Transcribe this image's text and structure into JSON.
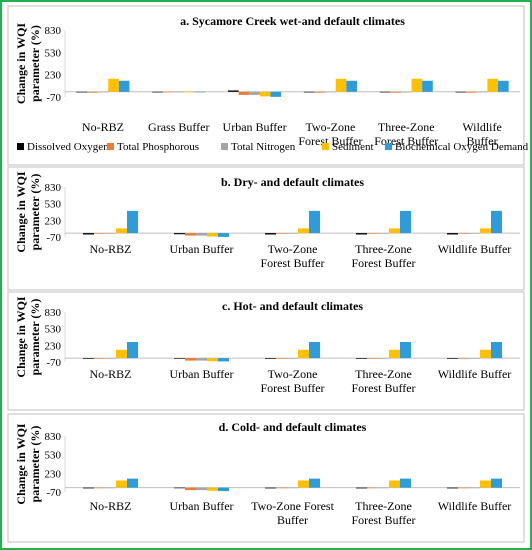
{
  "colors": {
    "border": "#22b14c",
    "panel_border": "#bfbfbf",
    "Dissolved Oxygen": "#000000",
    "Total Phosphorous": "#ed7d31",
    "Total Nitrogen": "#a5a5a5",
    "Sediment": "#ffc000",
    "Biochemical Oxygen Demand": "#2e9bdb"
  },
  "legend": {
    "placement": "between panel a and panel b",
    "items": [
      "Dissolved Oxygen",
      "Total Phosphorous",
      "Total Nitrogen",
      "Sediment",
      "Biochemical Oxygen Demand"
    ]
  },
  "chart_data": [
    {
      "type": "bar",
      "title": "a. Sycamore Creek wet-and default climates",
      "ylabel": "Change in WQI parameter (%)",
      "ylim": [
        -70,
        830
      ],
      "yticks": [
        "830",
        "530",
        "230",
        "-70"
      ],
      "grid": false,
      "categories": [
        [
          "No-RBZ"
        ],
        [
          "Grass Buffer"
        ],
        [
          "Urban Buffer"
        ],
        [
          "Two-Zone",
          "Forest Buffer"
        ],
        [
          "Three-Zone",
          "Forest Buffer"
        ],
        [
          "Wildlife",
          "Buffer"
        ]
      ],
      "series": [
        {
          "name": "Dissolved Oxygen",
          "values": [
            -5,
            0,
            18,
            -5,
            -5,
            -5
          ]
        },
        {
          "name": "Total Phosphorous",
          "values": [
            -12,
            0,
            -42,
            -12,
            -12,
            -12
          ]
        },
        {
          "name": "Total Nitrogen",
          "values": [
            -5,
            0,
            -42,
            -5,
            -5,
            -5
          ]
        },
        {
          "name": "Sediment",
          "values": [
            175,
            0,
            -62,
            175,
            175,
            175
          ]
        },
        {
          "name": "Biochemical Oxygen Demand",
          "values": [
            148,
            0,
            -68,
            148,
            148,
            148
          ]
        }
      ]
    },
    {
      "type": "bar",
      "title": "b. Dry- and default climates",
      "ylabel": "Change in WQI parameter (%)",
      "ylim": [
        -70,
        830
      ],
      "yticks": [
        "830",
        "530",
        "230",
        "-70"
      ],
      "grid": false,
      "categories": [
        [
          "No-RBZ"
        ],
        [
          "Urban Buffer"
        ],
        [
          "Two-Zone",
          "Forest Buffer"
        ],
        [
          "Three-Zone",
          "Forest Buffer"
        ],
        [
          "Wildlife Buffer"
        ]
      ],
      "series": [
        {
          "name": "Dissolved Oxygen",
          "values": [
            -25,
            -20,
            -25,
            -25,
            -25
          ]
        },
        {
          "name": "Total Phosphorous",
          "values": [
            -10,
            -45,
            -10,
            -10,
            -10
          ]
        },
        {
          "name": "Total Nitrogen",
          "values": [
            -5,
            -45,
            -5,
            -5,
            -5
          ]
        },
        {
          "name": "Sediment",
          "values": [
            85,
            -60,
            85,
            85,
            85
          ]
        },
        {
          "name": "Biochemical Oxygen Demand",
          "values": [
            400,
            -68,
            400,
            400,
            400
          ]
        }
      ]
    },
    {
      "type": "bar",
      "title": "c. Hot- and default climates",
      "ylabel": "Change in WQI parameter (%)",
      "ylim": [
        -70,
        830
      ],
      "yticks": [
        "830",
        "530",
        "230",
        "-70"
      ],
      "grid": false,
      "categories": [
        [
          "No-RBZ"
        ],
        [
          "Urban Buffer"
        ],
        [
          "Two-Zone",
          "Forest Buffer"
        ],
        [
          "Three-Zone",
          "Forest Buffer"
        ],
        [
          "Wildlife Buffer"
        ]
      ],
      "series": [
        {
          "name": "Dissolved Oxygen",
          "values": [
            -12,
            -10,
            -12,
            -12,
            -12
          ]
        },
        {
          "name": "Total Phosphorous",
          "values": [
            -8,
            -45,
            -8,
            -8,
            -8
          ]
        },
        {
          "name": "Total Nitrogen",
          "values": [
            -5,
            -45,
            -5,
            -5,
            -5
          ]
        },
        {
          "name": "Sediment",
          "values": [
            150,
            -55,
            150,
            150,
            150
          ]
        },
        {
          "name": "Biochemical Oxygen Demand",
          "values": [
            290,
            -60,
            290,
            290,
            290
          ]
        }
      ]
    },
    {
      "type": "bar",
      "title": "d. Cold- and default climates",
      "ylabel": "Change in WQI parameter (%)",
      "ylim": [
        -70,
        830
      ],
      "yticks": [
        "830",
        "530",
        "230",
        "-70"
      ],
      "grid": false,
      "categories": [
        [
          "No-RBZ"
        ],
        [
          "Urban Buffer"
        ],
        [
          "Two-Zone Forest",
          "Buffer"
        ],
        [
          "Three-Zone",
          "Forest Buffer"
        ],
        [
          "Wildlife Buffer"
        ]
      ],
      "series": [
        {
          "name": "Dissolved Oxygen",
          "values": [
            -12,
            -8,
            -12,
            -12,
            -12
          ]
        },
        {
          "name": "Total Phosphorous",
          "values": [
            -10,
            -40,
            -10,
            -10,
            -10
          ]
        },
        {
          "name": "Total Nitrogen",
          "values": [
            -5,
            -40,
            -5,
            -5,
            -5
          ]
        },
        {
          "name": "Sediment",
          "values": [
            115,
            -50,
            115,
            115,
            115
          ]
        },
        {
          "name": "Biochemical Oxygen Demand",
          "values": [
            145,
            -55,
            145,
            145,
            145
          ]
        }
      ]
    }
  ]
}
